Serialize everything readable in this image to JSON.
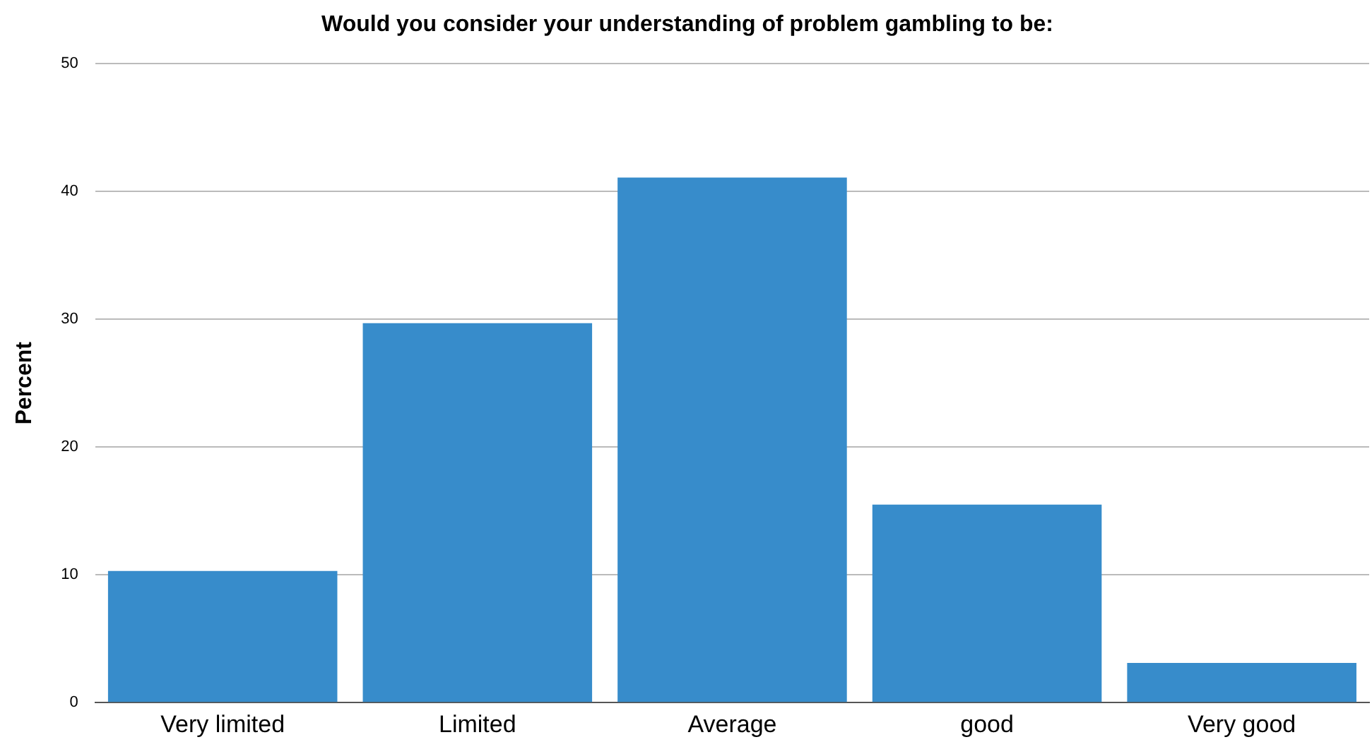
{
  "chart_data": {
    "type": "bar",
    "title": "Would you consider your understanding of problem gambling to be:",
    "ylabel": "Percent",
    "categories": [
      "Very limited",
      "Limited",
      "Average",
      "good",
      "Very good"
    ],
    "values": [
      10.3,
      29.7,
      41.1,
      15.5,
      3.1
    ],
    "color": "#378ccb",
    "ylim": [
      0,
      50
    ],
    "yticks": [
      0,
      10,
      20,
      30,
      40,
      50
    ],
    "grid": "y",
    "legend": false
  }
}
